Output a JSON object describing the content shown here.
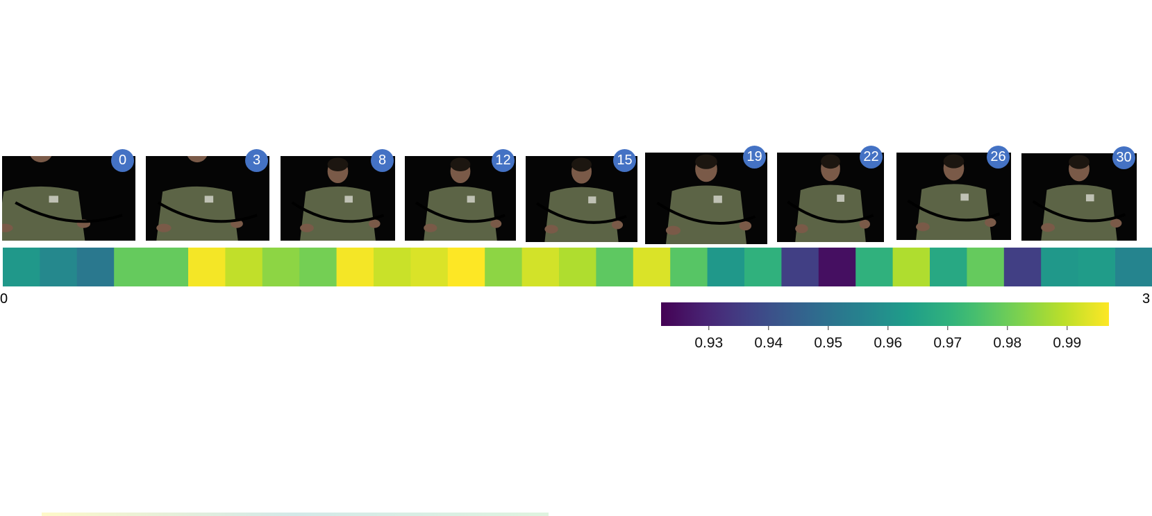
{
  "chart_data": {
    "type": "heatmap",
    "colormap": "viridis",
    "x_range": [
      0,
      31
    ],
    "x_tick_labels": [
      "0",
      "3"
    ],
    "values": [
      0.962,
      0.957,
      0.952,
      0.979,
      0.979,
      0.996,
      0.99,
      0.984,
      0.981,
      0.996,
      0.991,
      0.993,
      0.997,
      0.984,
      0.992,
      0.988,
      0.978,
      0.993,
      0.977,
      0.962,
      0.97,
      0.936,
      0.925,
      0.97,
      0.988,
      0.967,
      0.979,
      0.936,
      0.962,
      0.963,
      0.956
    ],
    "colorbar": {
      "min": 0.922,
      "max": 0.997,
      "ticks": [
        0.93,
        0.94,
        0.95,
        0.96,
        0.97,
        0.98,
        0.99
      ],
      "tick_labels": [
        "0.93",
        "0.94",
        "0.95",
        "0.96",
        "0.97",
        "0.98",
        "0.99"
      ]
    }
  },
  "frames": [
    {
      "label": "0"
    },
    {
      "label": "3"
    },
    {
      "label": "8"
    },
    {
      "label": "12"
    },
    {
      "label": "15"
    },
    {
      "label": "19"
    },
    {
      "label": "22"
    },
    {
      "label": "26"
    },
    {
      "label": "30"
    }
  ],
  "colors": {
    "badge": "#4472c4",
    "frame_background": "#050505",
    "shirt": "#5c6446",
    "skin": "#7a5a48",
    "hair": "#1c1610",
    "rope": "#000000"
  }
}
